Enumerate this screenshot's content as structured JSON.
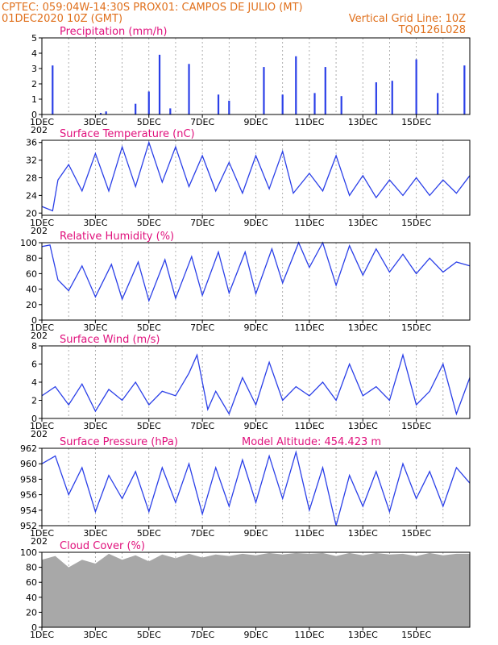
{
  "header": {
    "line1": "CPTEC:   059:04W-14:30S   PROX01: CAMPOS DE JULIO (MT)",
    "line2_left": "01DEC2020 10Z (GMT)",
    "line2_right": "Vertical Grid Line: 10Z",
    "line3_right": "TQ0126L028"
  },
  "colors": {
    "header": "#e0701c",
    "title": "#e0107c",
    "line": "#2a3fe8",
    "bar": "#2a3fe8",
    "cloud": "#a8a8a8",
    "grid": "#9a9a9a"
  },
  "x_axis": {
    "ticks": [
      "1DEC",
      "3DEC",
      "5DEC",
      "7DEC",
      "9DEC",
      "11DEC",
      "13DEC",
      "15DEC"
    ],
    "year_stub": "202"
  },
  "chart_data": [
    {
      "type": "bar",
      "title": "Precipitation (mm/h)",
      "ylim": [
        0,
        5
      ],
      "yticks": [
        "0",
        "1",
        "2",
        "3",
        "4",
        "5"
      ],
      "values_by_day": [
        [
          0.4,
          3.2
        ],
        [
          2.2,
          0.1
        ],
        [
          2.4,
          0.2
        ],
        [
          3.5,
          0.7
        ],
        [
          4.0,
          1.5
        ],
        [
          4.4,
          3.9
        ],
        [
          4.8,
          0.4
        ],
        [
          5.5,
          3.3
        ],
        [
          6.6,
          1.3
        ],
        [
          7.0,
          0.9
        ],
        [
          8.3,
          3.1
        ],
        [
          9.0,
          1.3
        ],
        [
          9.5,
          3.8
        ],
        [
          10.2,
          1.4
        ],
        [
          10.6,
          3.1
        ],
        [
          11.2,
          1.2
        ],
        [
          12.5,
          2.1
        ],
        [
          13.1,
          2.2
        ],
        [
          14.0,
          3.6
        ],
        [
          14.8,
          1.4
        ],
        [
          15.8,
          3.2
        ]
      ]
    },
    {
      "type": "line",
      "title": "Surface Temperature (nC)",
      "ylim": [
        19.5,
        36.5
      ],
      "yticks": [
        "20",
        "24",
        "28",
        "32",
        "36"
      ],
      "points": [
        [
          0,
          21.5
        ],
        [
          0.4,
          20.5
        ],
        [
          0.6,
          27.5
        ],
        [
          1.0,
          31.0
        ],
        [
          1.5,
          25.0
        ],
        [
          2.0,
          33.5
        ],
        [
          2.5,
          25.0
        ],
        [
          3.0,
          35.0
        ],
        [
          3.5,
          26.0
        ],
        [
          4.0,
          36.0
        ],
        [
          4.5,
          27.0
        ],
        [
          5.0,
          35.0
        ],
        [
          5.5,
          26.0
        ],
        [
          6.0,
          33.0
        ],
        [
          6.5,
          25.0
        ],
        [
          7.0,
          31.5
        ],
        [
          7.5,
          24.5
        ],
        [
          8.0,
          33.0
        ],
        [
          8.5,
          25.5
        ],
        [
          9.0,
          34.0
        ],
        [
          9.4,
          24.5
        ],
        [
          10.0,
          29.0
        ],
        [
          10.5,
          25.0
        ],
        [
          11.0,
          33.0
        ],
        [
          11.5,
          24.0
        ],
        [
          12.0,
          28.5
        ],
        [
          12.5,
          23.5
        ],
        [
          13.0,
          27.5
        ],
        [
          13.5,
          24.0
        ],
        [
          14.0,
          28.0
        ],
        [
          14.5,
          24.0
        ],
        [
          15.0,
          27.5
        ],
        [
          15.5,
          24.5
        ],
        [
          16.0,
          28.5
        ]
      ]
    },
    {
      "type": "line",
      "title": "Relative Humidity (%)",
      "ylim": [
        0,
        100
      ],
      "yticks": [
        "0",
        "20",
        "40",
        "60",
        "80",
        "100"
      ],
      "points": [
        [
          0,
          95
        ],
        [
          0.3,
          97
        ],
        [
          0.6,
          52
        ],
        [
          1.0,
          38
        ],
        [
          1.5,
          70
        ],
        [
          2.0,
          30
        ],
        [
          2.6,
          72
        ],
        [
          3.0,
          27
        ],
        [
          3.6,
          75
        ],
        [
          4.0,
          25
        ],
        [
          4.6,
          78
        ],
        [
          5.0,
          28
        ],
        [
          5.6,
          82
        ],
        [
          6.0,
          32
        ],
        [
          6.6,
          88
        ],
        [
          7.0,
          35
        ],
        [
          7.6,
          88
        ],
        [
          8.0,
          34
        ],
        [
          8.6,
          92
        ],
        [
          9.0,
          48
        ],
        [
          9.6,
          100
        ],
        [
          10.0,
          68
        ],
        [
          10.5,
          100
        ],
        [
          11.0,
          45
        ],
        [
          11.5,
          96
        ],
        [
          12.0,
          58
        ],
        [
          12.5,
          92
        ],
        [
          13.0,
          62
        ],
        [
          13.5,
          85
        ],
        [
          14.0,
          60
        ],
        [
          14.5,
          80
        ],
        [
          15.0,
          62
        ],
        [
          15.5,
          75
        ],
        [
          16.0,
          70
        ]
      ]
    },
    {
      "type": "line",
      "title": "Surface Wind (m/s)",
      "ylim": [
        0,
        8
      ],
      "yticks": [
        "0",
        "2",
        "4",
        "6",
        "8"
      ],
      "points": [
        [
          0,
          2.5
        ],
        [
          0.5,
          3.5
        ],
        [
          1.0,
          1.5
        ],
        [
          1.5,
          3.8
        ],
        [
          2.0,
          0.8
        ],
        [
          2.5,
          3.2
        ],
        [
          3.0,
          2.0
        ],
        [
          3.5,
          4.0
        ],
        [
          4.0,
          1.5
        ],
        [
          4.5,
          3.0
        ],
        [
          5.0,
          2.5
        ],
        [
          5.5,
          5.0
        ],
        [
          5.8,
          7.0
        ],
        [
          6.2,
          1.0
        ],
        [
          6.5,
          3.0
        ],
        [
          7.0,
          0.5
        ],
        [
          7.5,
          4.5
        ],
        [
          8.0,
          1.5
        ],
        [
          8.5,
          6.2
        ],
        [
          9.0,
          2.0
        ],
        [
          9.5,
          3.5
        ],
        [
          10.0,
          2.5
        ],
        [
          10.5,
          4.0
        ],
        [
          11.0,
          2.0
        ],
        [
          11.5,
          6.0
        ],
        [
          12.0,
          2.5
        ],
        [
          12.5,
          3.5
        ],
        [
          13.0,
          2.0
        ],
        [
          13.5,
          7.0
        ],
        [
          14.0,
          1.5
        ],
        [
          14.5,
          3.0
        ],
        [
          15.0,
          6.0
        ],
        [
          15.5,
          0.5
        ],
        [
          16.0,
          4.5
        ]
      ]
    },
    {
      "type": "line",
      "title": "Surface Pressure (hPa)",
      "annotation": "Model Altitude: 454.423 m",
      "ylim": [
        952,
        962
      ],
      "yticks": [
        "952",
        "954",
        "956",
        "958",
        "960",
        "962"
      ],
      "points": [
        [
          0,
          960.0
        ],
        [
          0.5,
          961.0
        ],
        [
          1.0,
          956.0
        ],
        [
          1.5,
          959.5
        ],
        [
          2.0,
          953.8
        ],
        [
          2.5,
          958.5
        ],
        [
          3.0,
          955.5
        ],
        [
          3.5,
          959.0
        ],
        [
          4.0,
          953.8
        ],
        [
          4.5,
          959.5
        ],
        [
          5.0,
          955.0
        ],
        [
          5.5,
          960.0
        ],
        [
          6.0,
          953.5
        ],
        [
          6.5,
          959.5
        ],
        [
          7.0,
          954.5
        ],
        [
          7.5,
          960.5
        ],
        [
          8.0,
          955.0
        ],
        [
          8.5,
          961.0
        ],
        [
          9.0,
          955.5
        ],
        [
          9.5,
          961.5
        ],
        [
          10.0,
          954.0
        ],
        [
          10.5,
          959.5
        ],
        [
          11.0,
          952.0
        ],
        [
          11.5,
          958.5
        ],
        [
          12.0,
          954.5
        ],
        [
          12.5,
          959.0
        ],
        [
          13.0,
          953.8
        ],
        [
          13.5,
          960.0
        ],
        [
          14.0,
          955.5
        ],
        [
          14.5,
          959.0
        ],
        [
          15.0,
          954.5
        ],
        [
          15.5,
          959.5
        ],
        [
          16.0,
          957.5
        ]
      ]
    },
    {
      "type": "area",
      "title": "Cloud Cover (%)",
      "ylim": [
        0,
        100
      ],
      "yticks": [
        "0",
        "20",
        "40",
        "60",
        "80",
        "100"
      ],
      "points": [
        [
          0,
          90
        ],
        [
          0.5,
          95
        ],
        [
          1.0,
          80
        ],
        [
          1.5,
          90
        ],
        [
          2.0,
          85
        ],
        [
          2.5,
          98
        ],
        [
          3.0,
          90
        ],
        [
          3.5,
          96
        ],
        [
          4.0,
          88
        ],
        [
          4.5,
          97
        ],
        [
          5.0,
          92
        ],
        [
          5.5,
          98
        ],
        [
          6.0,
          93
        ],
        [
          6.5,
          97
        ],
        [
          7.0,
          95
        ],
        [
          7.5,
          98
        ],
        [
          8.0,
          96
        ],
        [
          8.5,
          99
        ],
        [
          9.0,
          97
        ],
        [
          9.5,
          99
        ],
        [
          10.0,
          98
        ],
        [
          10.5,
          99
        ],
        [
          11.0,
          95
        ],
        [
          11.5,
          99
        ],
        [
          12.0,
          96
        ],
        [
          12.5,
          99
        ],
        [
          13.0,
          97
        ],
        [
          13.5,
          98
        ],
        [
          14.0,
          95
        ],
        [
          14.5,
          99
        ],
        [
          15.0,
          96
        ],
        [
          15.5,
          98
        ],
        [
          16.0,
          98
        ]
      ]
    }
  ]
}
